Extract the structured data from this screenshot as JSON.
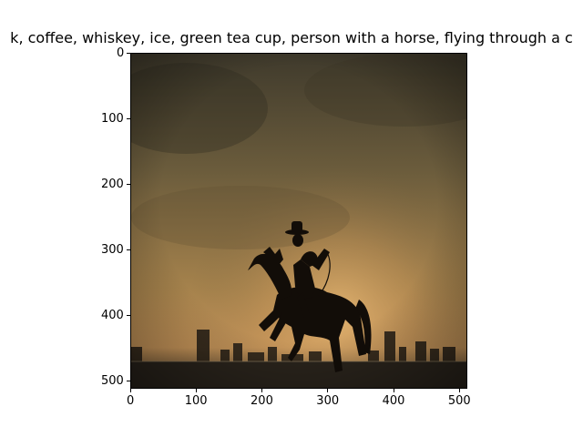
{
  "figure": {
    "title": "k,  coffee, whiskey, ice, green tea cup, person with a horse, flying through a c",
    "image_subject": "silhouette of cowboy on rearing horse against dusty sepia sky with city skyline",
    "colors": {
      "sky_top": "#4a4332",
      "sky_mid": "#8f7748",
      "glow": "#d9a860",
      "ground": "#2a241c",
      "silhouette": "#120d08"
    },
    "x_axis": {
      "ticks": [
        0,
        100,
        200,
        300,
        400,
        500
      ],
      "range": [
        0,
        512
      ]
    },
    "y_axis": {
      "ticks": [
        0,
        100,
        200,
        300,
        400,
        500
      ],
      "range": [
        0,
        512
      ]
    }
  }
}
